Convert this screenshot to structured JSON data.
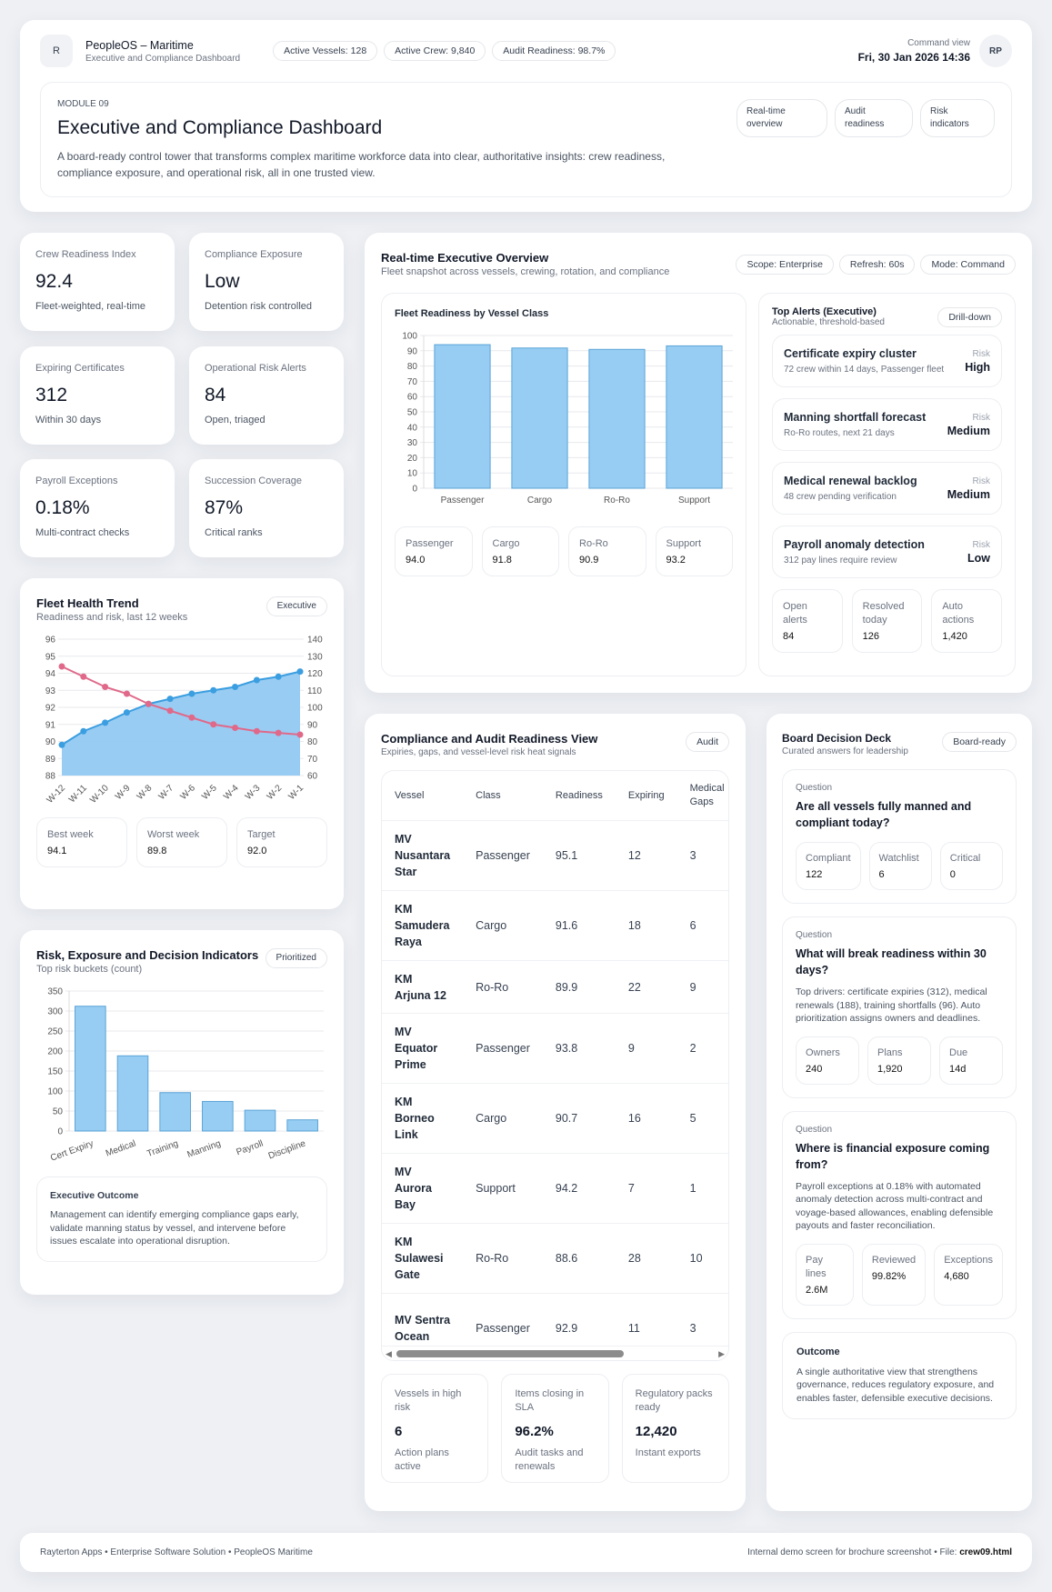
{
  "header": {
    "avatar_left": "R",
    "app_name": "PeopleOS – Maritime",
    "app_subtitle": "Executive and Compliance Dashboard",
    "stats": [
      "Active Vessels: 128",
      "Active Crew: 9,840",
      "Audit Readiness: 98.7%"
    ],
    "view_label": "Command view",
    "datetime": "Fri, 30 Jan 2026 14:36",
    "avatar_right": "RP"
  },
  "hero": {
    "module": "MODULE 09",
    "title": "Executive and Compliance Dashboard",
    "description": "A board-ready control tower that transforms complex maritime workforce data into clear, authoritative insights: crew readiness, compliance exposure, and operational risk, all in one trusted view.",
    "tags": [
      "Real-time overview",
      "Audit readiness",
      "Risk indicators"
    ]
  },
  "kpis": [
    {
      "label": "Crew Readiness Index",
      "value": "92.4",
      "sub": "Fleet-weighted, real-time"
    },
    {
      "label": "Compliance Exposure",
      "value": "Low",
      "sub": "Detention risk controlled"
    },
    {
      "label": "Expiring Certificates",
      "value": "312",
      "sub": "Within 30 days"
    },
    {
      "label": "Operational Risk Alerts",
      "value": "84",
      "sub": "Open, triaged"
    },
    {
      "label": "Payroll Exceptions",
      "value": "0.18%",
      "sub": "Multi-contract checks"
    },
    {
      "label": "Succession Coverage",
      "value": "87%",
      "sub": "Critical ranks"
    }
  ],
  "trend": {
    "title": "Fleet Health Trend",
    "subtitle": "Readiness and risk, last 12 weeks",
    "badge": "Executive",
    "stats": [
      {
        "label": "Best week",
        "value": "94.1"
      },
      {
        "label": "Worst week",
        "value": "89.8"
      },
      {
        "label": "Target",
        "value": "92.0"
      }
    ]
  },
  "risk": {
    "title": "Risk, Exposure and Decision Indicators",
    "subtitle": "Top risk buckets (count)",
    "badge": "Prioritized",
    "outcome_title": "Executive Outcome",
    "outcome_text": "Management can identify emerging compliance gaps early, validate manning status by vessel, and intervene before issues escalate into operational disruption."
  },
  "overview": {
    "title": "Real-time Executive Overview",
    "subtitle": "Fleet snapshot across vessels, crewing, rotation, and compliance",
    "pills": [
      "Scope: Enterprise",
      "Refresh: 60s",
      "Mode: Command"
    ],
    "chart_title": "Fleet Readiness by Vessel Class",
    "class_stats": [
      {
        "label": "Passenger",
        "value": "94.0"
      },
      {
        "label": "Cargo",
        "value": "91.8"
      },
      {
        "label": "Ro-Ro",
        "value": "90.9"
      },
      {
        "label": "Support",
        "value": "93.2"
      }
    ]
  },
  "alerts": {
    "title": "Top Alerts (Executive)",
    "subtitle": "Actionable, threshold-based",
    "button": "Drill-down",
    "items": [
      {
        "title": "Certificate expiry cluster",
        "detail": "72 crew within 14 days, Passenger fleet",
        "risk_label": "Risk",
        "risk": "High"
      },
      {
        "title": "Manning shortfall forecast",
        "detail": "Ro-Ro routes, next 21 days",
        "risk_label": "Risk",
        "risk": "Medium"
      },
      {
        "title": "Medical renewal backlog",
        "detail": "48 crew pending verification",
        "risk_label": "Risk",
        "risk": "Medium"
      },
      {
        "title": "Payroll anomaly detection",
        "detail": "312 pay lines require review",
        "risk_label": "Risk",
        "risk": "Low"
      }
    ],
    "stats": [
      {
        "label": "Open alerts",
        "value": "84"
      },
      {
        "label": "Resolved today",
        "value": "126"
      },
      {
        "label": "Auto actions",
        "value": "1,420"
      }
    ]
  },
  "compliance": {
    "title": "Compliance and Audit Readiness View",
    "subtitle": "Expiries, gaps, and vessel-level risk heat signals",
    "badge": "Audit",
    "columns": [
      "Vessel",
      "Class",
      "Readiness",
      "Expiring",
      "Medical Gaps"
    ],
    "rows": [
      [
        "MV Nusantara Star",
        "Passenger",
        "95.1",
        "12",
        "3"
      ],
      [
        "KM Samudera Raya",
        "Cargo",
        "91.6",
        "18",
        "6"
      ],
      [
        "KM Arjuna 12",
        "Ro-Ro",
        "89.9",
        "22",
        "9"
      ],
      [
        "MV Equator Prime",
        "Passenger",
        "93.8",
        "9",
        "2"
      ],
      [
        "KM Borneo Link",
        "Cargo",
        "90.7",
        "16",
        "5"
      ],
      [
        "MV Aurora Bay",
        "Support",
        "94.2",
        "7",
        "1"
      ],
      [
        "KM Sulawesi Gate",
        "Ro-Ro",
        "88.6",
        "28",
        "10"
      ],
      [
        "MV Sentra Ocean",
        "Passenger",
        "92.9",
        "11",
        "3"
      ]
    ],
    "stats": [
      {
        "label": "Vessels in high risk",
        "value": "6",
        "sub": "Action plans active"
      },
      {
        "label": "Items closing in SLA",
        "value": "96.2%",
        "sub": "Audit tasks and renewals"
      },
      {
        "label": "Regulatory packs ready",
        "value": "12,420",
        "sub": "Instant exports"
      }
    ]
  },
  "board": {
    "title": "Board Decision Deck",
    "subtitle": "Curated answers for leadership",
    "badge": "Board-ready",
    "questions": [
      {
        "label": "Question",
        "q": "Are all vessels fully manned and compliant today?",
        "text": "",
        "stats": [
          {
            "label": "Compliant",
            "value": "122"
          },
          {
            "label": "Watchlist",
            "value": "6"
          },
          {
            "label": "Critical",
            "value": "0"
          }
        ]
      },
      {
        "label": "Question",
        "q": "What will break readiness within 30 days?",
        "text": "Top drivers: certificate expiries (312), medical renewals (188), training shortfalls (96). Auto prioritization assigns owners and deadlines.",
        "stats": [
          {
            "label": "Owners",
            "value": "240"
          },
          {
            "label": "Plans",
            "value": "1,920"
          },
          {
            "label": "Due",
            "value": "14d"
          }
        ]
      },
      {
        "label": "Question",
        "q": "Where is financial exposure coming from?",
        "text": "Payroll exceptions at 0.18% with automated anomaly detection across multi-contract and voyage-based allowances, enabling defensible payouts and faster reconciliation.",
        "stats": [
          {
            "label": "Pay lines",
            "value": "2.6M"
          },
          {
            "label": "Reviewed",
            "value": "99.82%"
          },
          {
            "label": "Exceptions",
            "value": "4,680"
          }
        ]
      }
    ],
    "outcome_title": "Outcome",
    "outcome_text": "A single authoritative view that strengthens governance, reduces regulatory exposure, and enables faster, defensible executive decisions."
  },
  "footer": {
    "left": "Rayterton Apps • Enterprise Software Solution • PeopleOS Maritime",
    "right_prefix": "Internal demo screen for brochure screenshot • File: ",
    "file": "crew09.html"
  },
  "chart_data": [
    {
      "type": "line",
      "x": [
        "W-12",
        "W-11",
        "W-10",
        "W-9",
        "W-8",
        "W-7",
        "W-6",
        "W-5",
        "W-4",
        "W-3",
        "W-2",
        "W-1"
      ],
      "series": [
        {
          "values": [
            89.8,
            90.6,
            91.1,
            91.7,
            92.2,
            92.5,
            92.8,
            93.0,
            93.2,
            93.6,
            93.8,
            94.1
          ],
          "axis": "left",
          "color": "#3b9ee0",
          "fill": "#93c9f2"
        },
        {
          "values": [
            124,
            118,
            112,
            108,
            102,
            98,
            94,
            90,
            88,
            86,
            85,
            84
          ],
          "axis": "right",
          "color": "#e0698a"
        }
      ],
      "ylim": [
        88,
        96
      ],
      "yticks": [
        88,
        89,
        90,
        91,
        92,
        93,
        94,
        95,
        96
      ],
      "y2lim": [
        60,
        140
      ],
      "y2ticks": [
        60,
        70,
        80,
        90,
        100,
        110,
        120,
        130,
        140
      ],
      "grid": true
    },
    {
      "type": "bar",
      "categories": [
        "Passenger",
        "Cargo",
        "Ro-Ro",
        "Support"
      ],
      "values": [
        94.0,
        91.8,
        90.9,
        93.2
      ],
      "ylim": [
        0,
        100
      ],
      "yticks": [
        0,
        10,
        20,
        30,
        40,
        50,
        60,
        70,
        80,
        90,
        100
      ],
      "grid": true,
      "color": "#97cdf3"
    },
    {
      "type": "bar",
      "categories": [
        "Cert Expiry",
        "Medical",
        "Training",
        "Manning",
        "Payroll",
        "Discipline"
      ],
      "values": [
        312,
        188,
        96,
        74,
        52,
        28
      ],
      "ylim": [
        0,
        350
      ],
      "yticks": [
        0,
        50,
        100,
        150,
        200,
        250,
        300,
        350
      ],
      "grid": true,
      "color": "#97cdf3"
    }
  ]
}
